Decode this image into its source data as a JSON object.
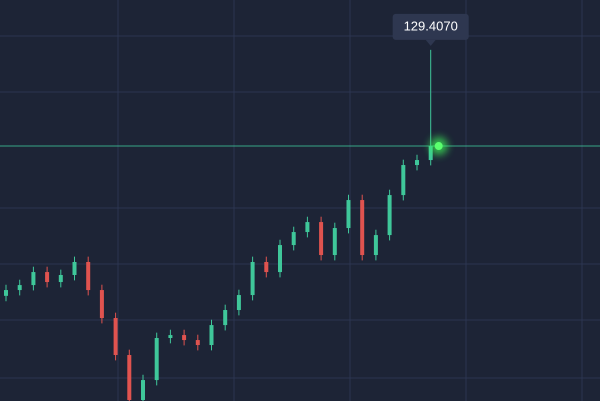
{
  "chart_data": {
    "type": "candlestick",
    "open": [
      101.8,
      102.45,
      103.01,
      104.47,
      103.35,
      104.14,
      105.6,
      102.45,
      99.31,
      95.16,
      90.11,
      92.35,
      97.07,
      97.4,
      96.84,
      96.28,
      98.52,
      100.21,
      101.89,
      105.6,
      104.47,
      107.5,
      108.96,
      110.08,
      106.38,
      109.41,
      112.55,
      106.38,
      108.62,
      113.11,
      116.48,
      117.04
    ],
    "high": [
      103.05,
      103.61,
      105.07,
      105.07,
      104.74,
      106.2,
      106.2,
      103.05,
      99.91,
      95.76,
      92.95,
      97.67,
      98.0,
      98.0,
      97.44,
      99.12,
      100.81,
      102.49,
      106.2,
      106.2,
      108.1,
      109.56,
      110.68,
      110.68,
      110.01,
      113.15,
      113.15,
      109.22,
      113.71,
      117.08,
      117.64,
      129.407
    ],
    "low": [
      101.2,
      101.85,
      102.41,
      102.75,
      102.75,
      103.54,
      101.85,
      98.71,
      94.56,
      89.51,
      89.51,
      91.75,
      96.47,
      96.24,
      95.68,
      95.68,
      97.92,
      99.61,
      101.29,
      103.87,
      103.87,
      106.9,
      108.36,
      105.78,
      105.78,
      108.81,
      105.78,
      105.78,
      108.02,
      112.51,
      115.88,
      116.44
    ],
    "close": [
      102.45,
      103.01,
      104.47,
      103.35,
      104.14,
      105.6,
      102.45,
      99.31,
      95.16,
      90.11,
      92.35,
      97.07,
      97.4,
      96.84,
      96.28,
      98.52,
      100.21,
      101.89,
      105.6,
      104.47,
      107.5,
      108.96,
      110.08,
      106.38,
      109.41,
      112.55,
      106.38,
      108.62,
      113.11,
      116.48,
      117.04,
      118.61
    ],
    "up_color": "#3fc79a",
    "down_color": "#e0534f",
    "ylim": [
      90,
      135
    ],
    "grid": true,
    "annotation": {
      "value": 129.407,
      "label": "129.4070"
    }
  }
}
